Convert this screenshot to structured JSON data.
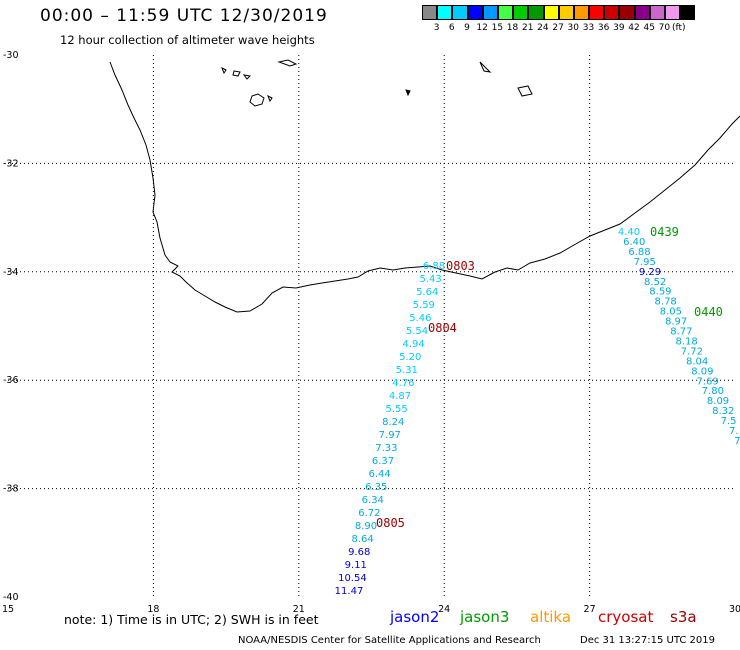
{
  "title": "00:00 – 11:59 UTC 12/30/2019",
  "subtitle": "12 hour collection of altimeter wave heights",
  "colorbar": {
    "colors": [
      "#888888",
      "#00ffff",
      "#00ccff",
      "#0000ff",
      "#0099ff",
      "#44ff44",
      "#00cc00",
      "#009900",
      "#ffff00",
      "#ffcc00",
      "#ff9900",
      "#ff0000",
      "#cc0000",
      "#990000",
      "#880088",
      "#cc66cc",
      "#ee99ee",
      "#000000"
    ],
    "labels": [
      "3",
      "6",
      "9",
      "12",
      "15",
      "18",
      "21",
      "24",
      "27",
      "30",
      "33",
      "36",
      "39",
      "42",
      "45",
      "70"
    ],
    "unit": "(ft)"
  },
  "map": {
    "lat_ticks": [
      "-30",
      "-32",
      "-34",
      "-36",
      "-38",
      "-40"
    ],
    "lon_ticks": [
      "15",
      "18",
      "21",
      "24",
      "27",
      "30"
    ],
    "lon_range": [
      15,
      30
    ],
    "lat_range": [
      -40,
      -30
    ]
  },
  "passes": [
    {
      "label": "0803",
      "color": "#990000"
    },
    {
      "label": "0804",
      "color": "#990000"
    },
    {
      "label": "0805",
      "color": "#990000"
    },
    {
      "label": "0439",
      "color": "#009900"
    },
    {
      "label": "0440",
      "color": "#009900"
    }
  ],
  "track_west": [
    {
      "v": "6.88",
      "c": "#00ccff"
    },
    {
      "v": "5.43",
      "c": "#00ccff"
    },
    {
      "v": "5.64",
      "c": "#00ccff"
    },
    {
      "v": "5.59",
      "c": "#00ccff"
    },
    {
      "v": "5.46",
      "c": "#00ccff"
    },
    {
      "v": "5.54",
      "c": "#00ccff"
    },
    {
      "v": "4.94",
      "c": "#00ccff"
    },
    {
      "v": "5.20",
      "c": "#00ccff"
    },
    {
      "v": "5.31",
      "c": "#00ccff"
    },
    {
      "v": "4.76",
      "c": "#00ccff"
    },
    {
      "v": "4.87",
      "c": "#00ccff"
    },
    {
      "v": "5.55",
      "c": "#00ccff"
    },
    {
      "v": "8.24",
      "c": "#00aadd"
    },
    {
      "v": "7.97",
      "c": "#00aadd"
    },
    {
      "v": "7.33",
      "c": "#00aadd"
    },
    {
      "v": "6.37",
      "c": "#00aadd"
    },
    {
      "v": "6.44",
      "c": "#00aadd"
    },
    {
      "v": "6.35",
      "c": "#00aadd"
    },
    {
      "v": "6.34",
      "c": "#00aadd"
    },
    {
      "v": "6.72",
      "c": "#00aadd"
    },
    {
      "v": "8.90",
      "c": "#00aadd"
    },
    {
      "v": "8.64",
      "c": "#00aadd"
    },
    {
      "v": "9.68",
      "c": "#0000cc"
    },
    {
      "v": "9.11",
      "c": "#0000cc"
    },
    {
      "v": "10.54",
      "c": "#0000cc"
    },
    {
      "v": "11.47",
      "c": "#0000cc"
    }
  ],
  "track_east": [
    {
      "v": "4.40",
      "c": "#00ccff"
    },
    {
      "v": "6.40",
      "c": "#00aadd"
    },
    {
      "v": "6.88",
      "c": "#00aadd"
    },
    {
      "v": "7.95",
      "c": "#00aadd"
    },
    {
      "v": "9.29",
      "c": "#0000cc"
    },
    {
      "v": "8.52",
      "c": "#00aadd"
    },
    {
      "v": "8.59",
      "c": "#00aadd"
    },
    {
      "v": "8.78",
      "c": "#00aadd"
    },
    {
      "v": "8.05",
      "c": "#00aadd"
    },
    {
      "v": "8.97",
      "c": "#00aadd"
    },
    {
      "v": "8.77",
      "c": "#00aadd"
    },
    {
      "v": "8.18",
      "c": "#00aadd"
    },
    {
      "v": "7.72",
      "c": "#00aadd"
    },
    {
      "v": "8.04",
      "c": "#00aadd"
    },
    {
      "v": "8.09",
      "c": "#00aadd"
    },
    {
      "v": "7.69",
      "c": "#00aadd"
    },
    {
      "v": "7.80",
      "c": "#00aadd"
    },
    {
      "v": "8.09",
      "c": "#00aadd"
    },
    {
      "v": "8.32",
      "c": "#00aadd"
    },
    {
      "v": "7.5",
      "c": "#00aadd"
    },
    {
      "v": "7.",
      "c": "#00aadd"
    },
    {
      "v": "7.",
      "c": "#00aadd"
    }
  ],
  "note": "note:  1) Time is in UTC;  2) SWH is in feet",
  "legend": [
    {
      "name": "jason2",
      "color": "#0000ff"
    },
    {
      "name": "jason3",
      "color": "#009900"
    },
    {
      "name": "altika",
      "color": "#ff9900"
    },
    {
      "name": "cryosat",
      "color": "#cc0000"
    },
    {
      "name": "s3a",
      "color": "#990000"
    }
  ],
  "footer_left": "NOAA/NESDIS Center for Satellite Applications and Research",
  "footer_right": "Dec 31 13:27:15 UTC 2019"
}
